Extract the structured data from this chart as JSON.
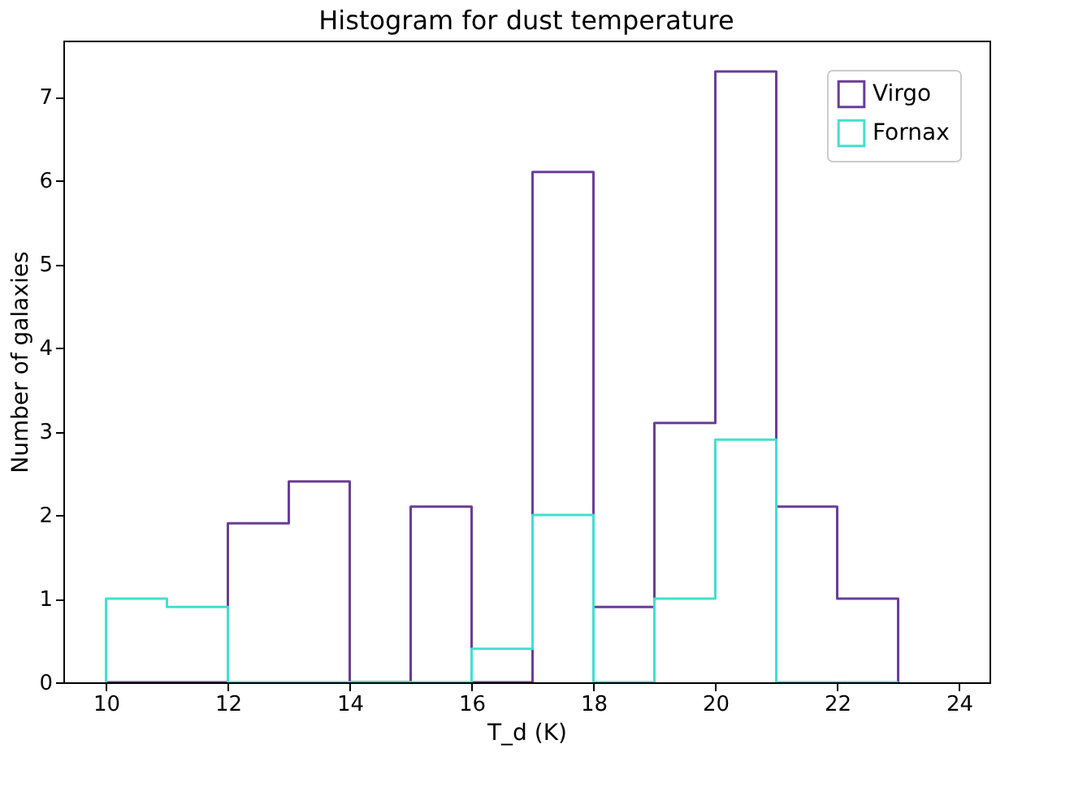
{
  "chart_data": {
    "type": "histogram",
    "title": "Histogram for dust temperature",
    "xlabel": "T_d (K)",
    "ylabel": "Number of galaxies",
    "bins": [
      10,
      11,
      12,
      13,
      14,
      15,
      16,
      17,
      18,
      19,
      20,
      21,
      22,
      23
    ],
    "series": [
      {
        "name": "Virgo",
        "color": "#6a3d9a",
        "values": [
          0,
          0,
          1.9,
          2.4,
          0,
          2.1,
          0,
          6.1,
          0.9,
          3.1,
          7.3,
          2.1,
          1.0
        ]
      },
      {
        "name": "Fornax",
        "color": "#40e0d0",
        "values": [
          1.0,
          0.9,
          0,
          0,
          0,
          0,
          0.4,
          2.0,
          0,
          1.0,
          2.9,
          0,
          0
        ]
      }
    ],
    "xlim": [
      9.3,
      24.5
    ],
    "xticks": [
      10,
      12,
      14,
      16,
      18,
      20,
      22,
      24
    ],
    "ylim": [
      0,
      7.67
    ],
    "yticks": [
      0,
      1,
      2,
      3,
      4,
      5,
      6,
      7
    ],
    "grid": false,
    "legend": "top right"
  }
}
